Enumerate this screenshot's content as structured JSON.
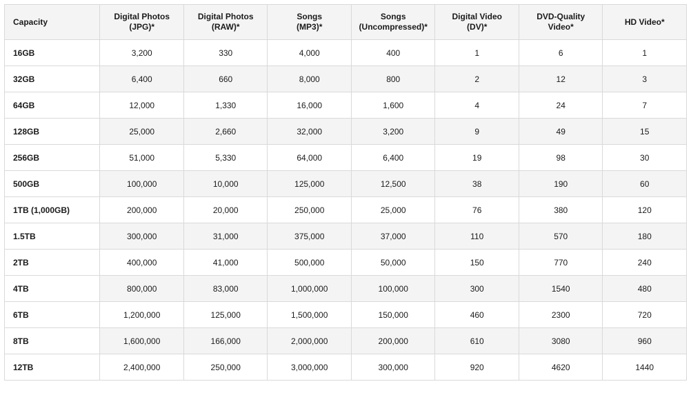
{
  "table": {
    "type": "table",
    "background_color": "#ffffff",
    "alt_row_background": "#f4f4f4",
    "border_color": "#d9d9d9",
    "text_color": "#1a1a1a",
    "header_fontsize": 12,
    "cell_fontsize": 12,
    "columns": [
      {
        "lines": [
          "Capacity"
        ],
        "align": "left",
        "bold_cells": true
      },
      {
        "lines": [
          "Digital Photos",
          "(JPG)*"
        ],
        "align": "center"
      },
      {
        "lines": [
          "Digital Photos",
          "(RAW)*"
        ],
        "align": "center"
      },
      {
        "lines": [
          "Songs",
          "(MP3)*"
        ],
        "align": "center"
      },
      {
        "lines": [
          "Songs",
          "(Uncompressed)*"
        ],
        "align": "center"
      },
      {
        "lines": [
          "Digital Video",
          "(DV)*"
        ],
        "align": "center"
      },
      {
        "lines": [
          "DVD-Quality",
          "Video*"
        ],
        "align": "center"
      },
      {
        "lines": [
          "HD Video*"
        ],
        "align": "center"
      }
    ],
    "rows": [
      [
        "16GB",
        "3,200",
        "330",
        "4,000",
        "400",
        "1",
        "6",
        "1"
      ],
      [
        "32GB",
        "6,400",
        "660",
        "8,000",
        "800",
        "2",
        "12",
        "3"
      ],
      [
        "64GB",
        "12,000",
        "1,330",
        "16,000",
        "1,600",
        "4",
        "24",
        "7"
      ],
      [
        "128GB",
        "25,000",
        "2,660",
        "32,000",
        "3,200",
        "9",
        "49",
        "15"
      ],
      [
        "256GB",
        "51,000",
        "5,330",
        "64,000",
        "6,400",
        "19",
        "98",
        "30"
      ],
      [
        "500GB",
        "100,000",
        "10,000",
        "125,000",
        "12,500",
        "38",
        "190",
        "60"
      ],
      [
        "1TB (1,000GB)",
        "200,000",
        "20,000",
        "250,000",
        "25,000",
        "76",
        "380",
        "120"
      ],
      [
        "1.5TB",
        "300,000",
        "31,000",
        "375,000",
        "37,000",
        "110",
        "570",
        "180"
      ],
      [
        "2TB",
        "400,000",
        "41,000",
        "500,000",
        "50,000",
        "150",
        "770",
        "240"
      ],
      [
        "4TB",
        "800,000",
        "83,000",
        "1,000,000",
        "100,000",
        "300",
        "1540",
        "480"
      ],
      [
        "6TB",
        "1,200,000",
        "125,000",
        "1,500,000",
        "150,000",
        "460",
        "2300",
        "720"
      ],
      [
        "8TB",
        "1,600,000",
        "166,000",
        "2,000,000",
        "200,000",
        "610",
        "3080",
        "960"
      ],
      [
        "12TB",
        "2,400,000",
        "250,000",
        "3,000,000",
        "300,000",
        "920",
        "4620",
        "1440"
      ]
    ]
  }
}
